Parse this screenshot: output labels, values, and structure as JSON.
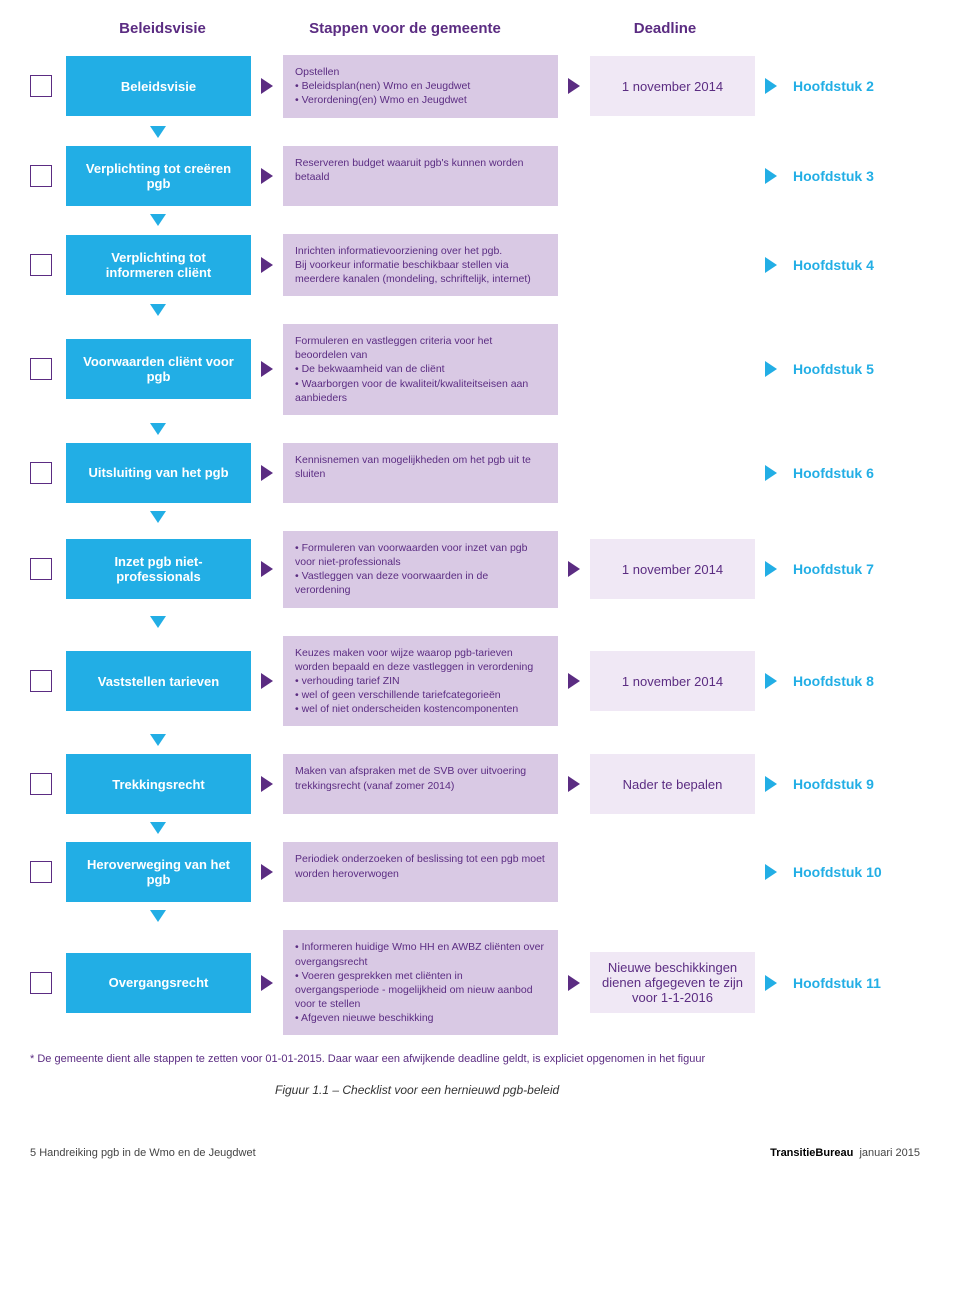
{
  "colors": {
    "blue": "#22aee5",
    "purple_box": "#d9c9e4",
    "deadline_box": "#f0e8f5",
    "purple_text": "#5b2c82",
    "white": "#ffffff"
  },
  "headers": {
    "col1": "Beleidsvisie",
    "col2": "Stappen voor de gemeente",
    "col3": "Deadline"
  },
  "rows": [
    {
      "title": "Beleidsvisie",
      "steps_html": "Opstellen<br>• Beleidsplan(nen) Wmo en Jeugdwet<br>• Verordening(en) Wmo en Jeugdwet",
      "deadline": "1 november 2014",
      "chapter": "Hoofdstuk 2"
    },
    {
      "title": "Verplichting tot creëren pgb",
      "steps_html": "Reserveren budget waaruit pgb's kunnen worden betaald",
      "deadline": "",
      "chapter": "Hoofdstuk 3"
    },
    {
      "title": "Verplichting tot informeren cliënt",
      "steps_html": "Inrichten informatievoorziening over het pgb.<br>Bij voorkeur informatie beschikbaar stellen via meerdere kanalen (mondeling, schriftelijk, internet)",
      "deadline": "",
      "chapter": "Hoofdstuk 4"
    },
    {
      "title": "Voorwaarden cliënt voor pgb",
      "steps_html": "Formuleren en vastleggen criteria voor het beoordelen van<br>• De bekwaamheid van de cliënt<br>• Waarborgen voor de kwaliteit/kwaliteitseisen aan aanbieders",
      "deadline": "",
      "chapter": "Hoofdstuk 5"
    },
    {
      "title": "Uitsluiting van het pgb",
      "steps_html": "Kennisnemen van mogelijkheden om het pgb uit te sluiten",
      "deadline": "",
      "chapter": "Hoofdstuk 6"
    },
    {
      "title": "Inzet pgb niet-professionals",
      "steps_html": "• Formuleren van voorwaarden voor inzet van pgb voor niet-professionals<br>• Vastleggen van deze voorwaarden in de verordening",
      "deadline": "1 november 2014",
      "chapter": "Hoofdstuk 7"
    },
    {
      "title": "Vaststellen tarieven",
      "steps_html": "Keuzes maken voor wijze waarop pgb-tarieven worden bepaald en deze vastleggen in verordening<br>• verhouding tarief ZIN<br>• wel of geen verschillende tariefcategorieën<br>• wel of niet onderscheiden kostencomponenten",
      "deadline": "1 november 2014",
      "chapter": "Hoofdstuk 8"
    },
    {
      "title": "Trekkingsrecht",
      "steps_html": "Maken van afspraken met de SVB over uitvoering trekkingsrecht (vanaf zomer 2014)",
      "deadline": "Nader te bepalen",
      "chapter": "Hoofdstuk 9"
    },
    {
      "title": "Heroverweging van het pgb",
      "steps_html": "Periodiek onderzoeken of beslissing tot een pgb moet worden heroverwogen",
      "deadline": "",
      "chapter": "Hoofdstuk 10"
    },
    {
      "title": "Overgangsrecht",
      "steps_html": "• Informeren huidige Wmo HH en AWBZ cliënten over overgangsrecht<br>• Voeren gesprekken met cliënten in overgangsperiode - mogelijkheid om nieuw aanbod voor te stellen<br>• Afgeven nieuwe beschikking",
      "deadline": "Nieuwe beschikkingen dienen afgegeven te zijn voor 1-1-2016",
      "chapter": "Hoofdstuk 11"
    }
  ],
  "footnote": "* De gemeente dient alle stappen te zetten voor 01-01-2015. Daar waar een afwijkende deadline geldt, is expliciet opgenomen in het figuur",
  "caption": "Figuur 1.1 – Checklist voor een hernieuwd pgb-beleid",
  "footer": {
    "left_page": "5",
    "left_text": "Handreiking pgb in de Wmo en de Jeugdwet",
    "right_brand": "TransitieBureau",
    "right_date": "januari 2015"
  }
}
